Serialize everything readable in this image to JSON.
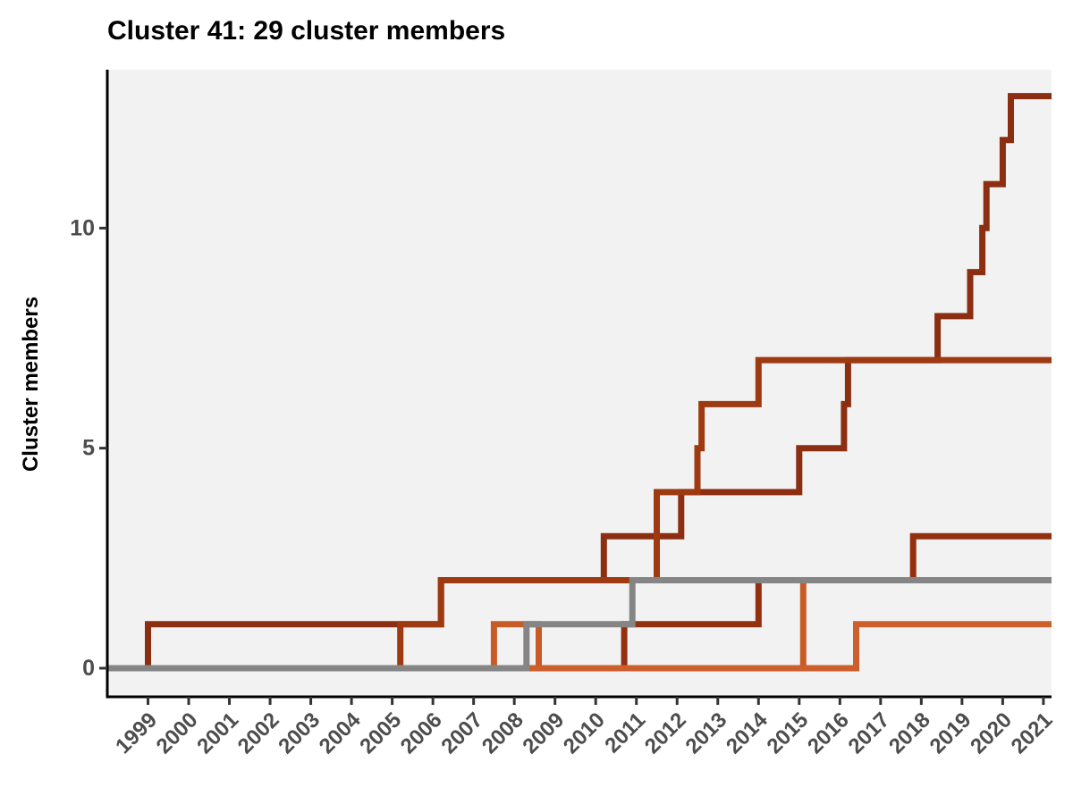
{
  "chart_data": {
    "type": "line",
    "subtype": "step",
    "title": "Cluster 41: 29 cluster members",
    "xlabel": "",
    "ylabel": "Cluster members",
    "xlim": [
      1998.0,
      2021.2
    ],
    "ylim": [
      -0.65,
      13.6
    ],
    "x_ticks": [
      "1999",
      "2000",
      "2001",
      "2002",
      "2003",
      "2004",
      "2005",
      "2006",
      "2007",
      "2008",
      "2009",
      "2010",
      "2011",
      "2012",
      "2013",
      "2014",
      "2015",
      "2016",
      "2017",
      "2018",
      "2019",
      "2020",
      "2021"
    ],
    "y_ticks": [
      0,
      5,
      10
    ],
    "grid": false,
    "background": "#f2f2f2",
    "legend": "none",
    "series": [
      {
        "color": "#8b2e12",
        "x": [
          1998.0,
          1999.0,
          2005.2,
          2006.2,
          2010.2,
          2012.1,
          2015.0,
          2016.1,
          2016.2,
          2018.4,
          2019.2,
          2019.5,
          2019.6,
          2020.0,
          2020.2,
          2021.2
        ],
        "y": [
          0,
          1,
          1,
          2,
          3,
          4,
          5,
          6,
          7,
          8,
          9,
          10,
          11,
          12,
          13,
          13
        ]
      },
      {
        "color": "#9e3a12",
        "x": [
          1998.0,
          2005.2,
          2006.2,
          2011.5,
          2012.5,
          2012.6,
          2014.0,
          2021.2
        ],
        "y": [
          0,
          1,
          2,
          4,
          5,
          6,
          7,
          7
        ]
      },
      {
        "color": "#93300f",
        "x": [
          1998.0,
          2008.3,
          2010.7,
          2014.0,
          2017.8,
          2021.2
        ],
        "y": [
          0,
          0,
          1,
          2,
          3,
          3
        ]
      },
      {
        "color": "#c85a28",
        "x": [
          1998.0,
          2007.5,
          2008.6,
          2015.1,
          2021.2
        ],
        "y": [
          0,
          1,
          0,
          2,
          2
        ]
      },
      {
        "color": "#cc5f2c",
        "x": [
          1998.0,
          2010.7,
          2016.4,
          2021.2
        ],
        "y": [
          0,
          0,
          1,
          1
        ]
      },
      {
        "color": "#858585",
        "x": [
          1998.0,
          2008.3,
          2010.9,
          2021.2
        ],
        "y": [
          0,
          1,
          2,
          2
        ]
      }
    ]
  }
}
